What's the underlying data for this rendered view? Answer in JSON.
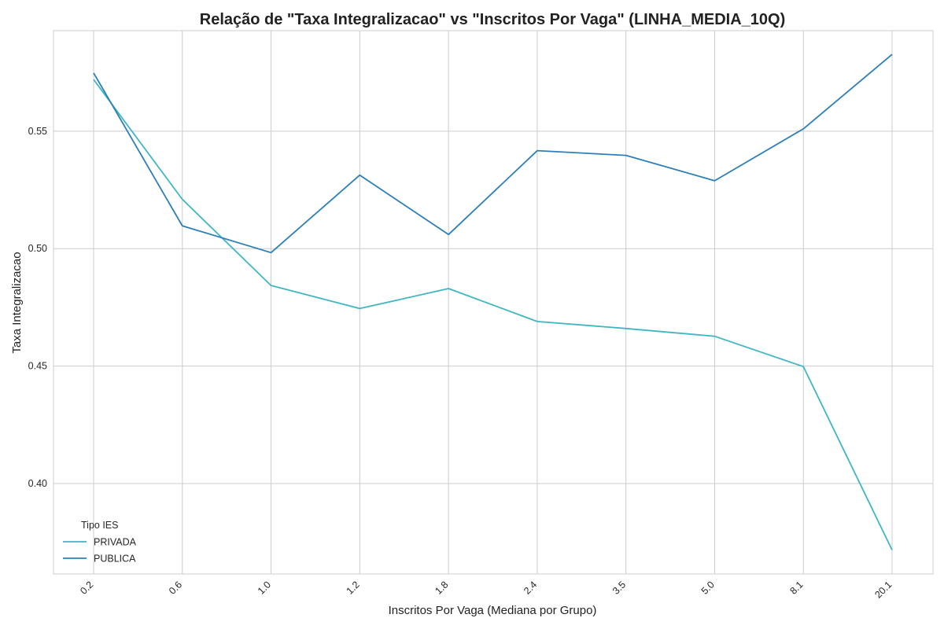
{
  "chart_data": {
    "type": "line",
    "title": "Relação de \"Taxa Integralizacao\" vs \"Inscritos Por Vaga\" (LINHA_MEDIA_10Q)",
    "xlabel": "Inscritos Por Vaga (Mediana por Grupo)",
    "ylabel": "Taxa Integralizacao",
    "categories": [
      "0.2",
      "0.6",
      "1.0",
      "1.2",
      "1.8",
      "2.4",
      "3.5",
      "5.0",
      "8.1",
      "20.1"
    ],
    "yticks": [
      "0.40",
      "0.45",
      "0.50",
      "0.55"
    ],
    "ylim": [
      0.3615,
      0.5928
    ],
    "grid": true,
    "legend": {
      "title": "Tipo IES",
      "placement": "lower-left"
    },
    "series": [
      {
        "name": "PRIVADA",
        "color": "#3fb6c3",
        "values": [
          0.572,
          0.521,
          0.4843,
          0.4745,
          0.483,
          0.469,
          0.466,
          0.4627,
          0.4498,
          0.3717
        ]
      },
      {
        "name": "PUBLICA",
        "color": "#2c7fb8",
        "values": [
          0.5748,
          0.5097,
          0.4983,
          0.5313,
          0.506,
          0.5417,
          0.5397,
          0.5289,
          0.551,
          0.5827
        ]
      }
    ]
  }
}
